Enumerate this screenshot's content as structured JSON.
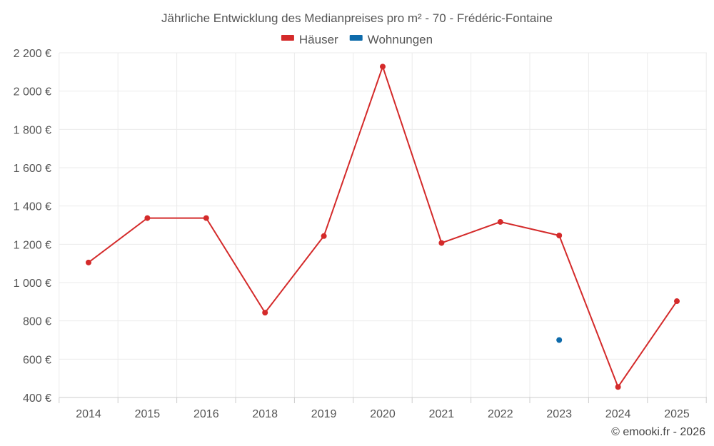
{
  "chart_data": {
    "type": "line",
    "title": "Jährliche Entwicklung des Medianpreises pro m² - 70 - Frédéric-Fontaine",
    "categories": [
      "2014",
      "2015",
      "2016",
      "2018",
      "2019",
      "2020",
      "2021",
      "2022",
      "2023",
      "2024",
      "2025"
    ],
    "series": [
      {
        "name": "Häuser",
        "color": "#d42a2a",
        "values": [
          1105,
          1337,
          1337,
          843,
          1243,
          2128,
          1207,
          1317,
          1246,
          455,
          903
        ]
      },
      {
        "name": "Wohnungen",
        "color": "#0e6bab",
        "values": [
          null,
          null,
          null,
          null,
          null,
          null,
          null,
          null,
          700,
          null,
          null
        ]
      }
    ],
    "ylim": [
      400,
      2200
    ],
    "yticks": [
      400,
      600,
      800,
      1000,
      1200,
      1400,
      1600,
      1800,
      2000,
      2200
    ],
    "ytick_labels": [
      "400 €",
      "600 €",
      "800 €",
      "1 000 €",
      "1 200 €",
      "1 400 €",
      "1 600 €",
      "1 800 €",
      "2 000 €",
      "2 200 €"
    ],
    "grid": true,
    "legend_position": "top-center"
  },
  "credit": "© emooki.fr - 2026"
}
